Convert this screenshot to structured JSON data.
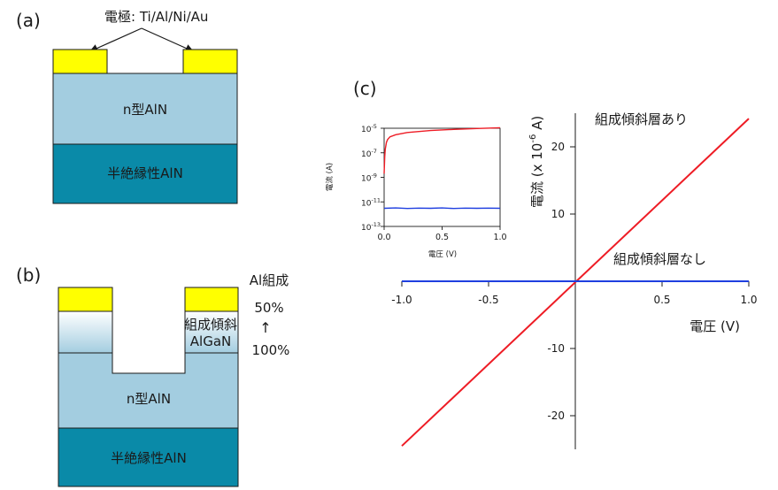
{
  "panel_a": {
    "label": "(a)",
    "electrode_label": "電極: Ti/Al/Ni/Au",
    "layer_n": "n型AlN",
    "layer_si": "半絶縁性AlN"
  },
  "panel_b": {
    "label": "(b)",
    "al_comp_title": "Al組成",
    "pct_top": "50%",
    "arrow": "↑",
    "pct_bottom": "100%",
    "graded_line1": "組成傾斜",
    "graded_line2": "AlGaN",
    "layer_n": "n型AlN",
    "layer_si": "半絶縁性AlN"
  },
  "panel_c": {
    "label": "(c)"
  },
  "colors": {
    "electrode": "#ffff00",
    "n_layer": "#a3cde0",
    "si_layer": "#0a8aa8",
    "with_grade": "#ee1c25",
    "without_grade": "#1f3fe0"
  },
  "chart_data": [
    {
      "type": "line",
      "xlabel": "電圧 (V)",
      "ylabel": "電流 (x 10",
      "ylabel_exp": "-6",
      "ylabel_tail": " A)",
      "xlim": [
        -1.0,
        1.0
      ],
      "ylim": [
        -25,
        25
      ],
      "xticks": [
        -1.0,
        -0.5,
        0.5,
        1.0
      ],
      "xtick_labels": [
        "-1.0",
        "-0.5",
        "0.5",
        "1.0"
      ],
      "yticks": [
        -20,
        -10,
        10,
        20
      ],
      "ytick_labels": [
        "-20",
        "-10",
        "10",
        "20"
      ],
      "series": [
        {
          "name": "組成傾斜層あり",
          "x": [
            -1.0,
            1.0
          ],
          "y": [
            -24.5,
            24.2
          ]
        },
        {
          "name": "組成傾斜層なし",
          "x": [
            -1.0,
            1.0
          ],
          "y": [
            0.0,
            0.0
          ]
        }
      ]
    },
    {
      "type": "line",
      "scale_y": "log",
      "xlabel": "電圧 (V)",
      "ylabel": "電流 (A)",
      "xlim": [
        0.0,
        1.0
      ],
      "ylim": [
        1e-13,
        1e-05
      ],
      "xticks": [
        0.0,
        0.5,
        1.0
      ],
      "xtick_labels": [
        "0.0",
        "0.5",
        "1.0"
      ],
      "yticks": [
        -13,
        -11,
        -9,
        -7,
        -5
      ],
      "ytick_labels": [
        "10",
        "10",
        "10",
        "10",
        "10"
      ],
      "ytick_exps": [
        "-13",
        "-11",
        "-9",
        "-7",
        "-5"
      ],
      "series": [
        {
          "x": [
            0.0,
            0.005,
            0.01,
            0.02,
            0.03,
            0.05,
            0.1,
            0.2,
            0.4,
            0.6,
            0.8,
            1.0
          ],
          "y": [
            2e-09,
            5e-08,
            2e-07,
            7e-07,
            1.2e-06,
            2e-06,
            3e-06,
            4.5e-06,
            6.5e-06,
            8e-06,
            9.5e-06,
            1.1e-05
          ]
        },
        {
          "x": [
            0.0,
            0.1,
            0.2,
            0.3,
            0.4,
            0.5,
            0.6,
            0.7,
            0.8,
            0.9,
            1.0
          ],
          "y": [
            3e-12,
            3.2e-12,
            2.9e-12,
            3.1e-12,
            3e-12,
            3.2e-12,
            2.9e-12,
            3.1e-12,
            3e-12,
            3.1e-12,
            3e-12
          ]
        }
      ]
    }
  ]
}
